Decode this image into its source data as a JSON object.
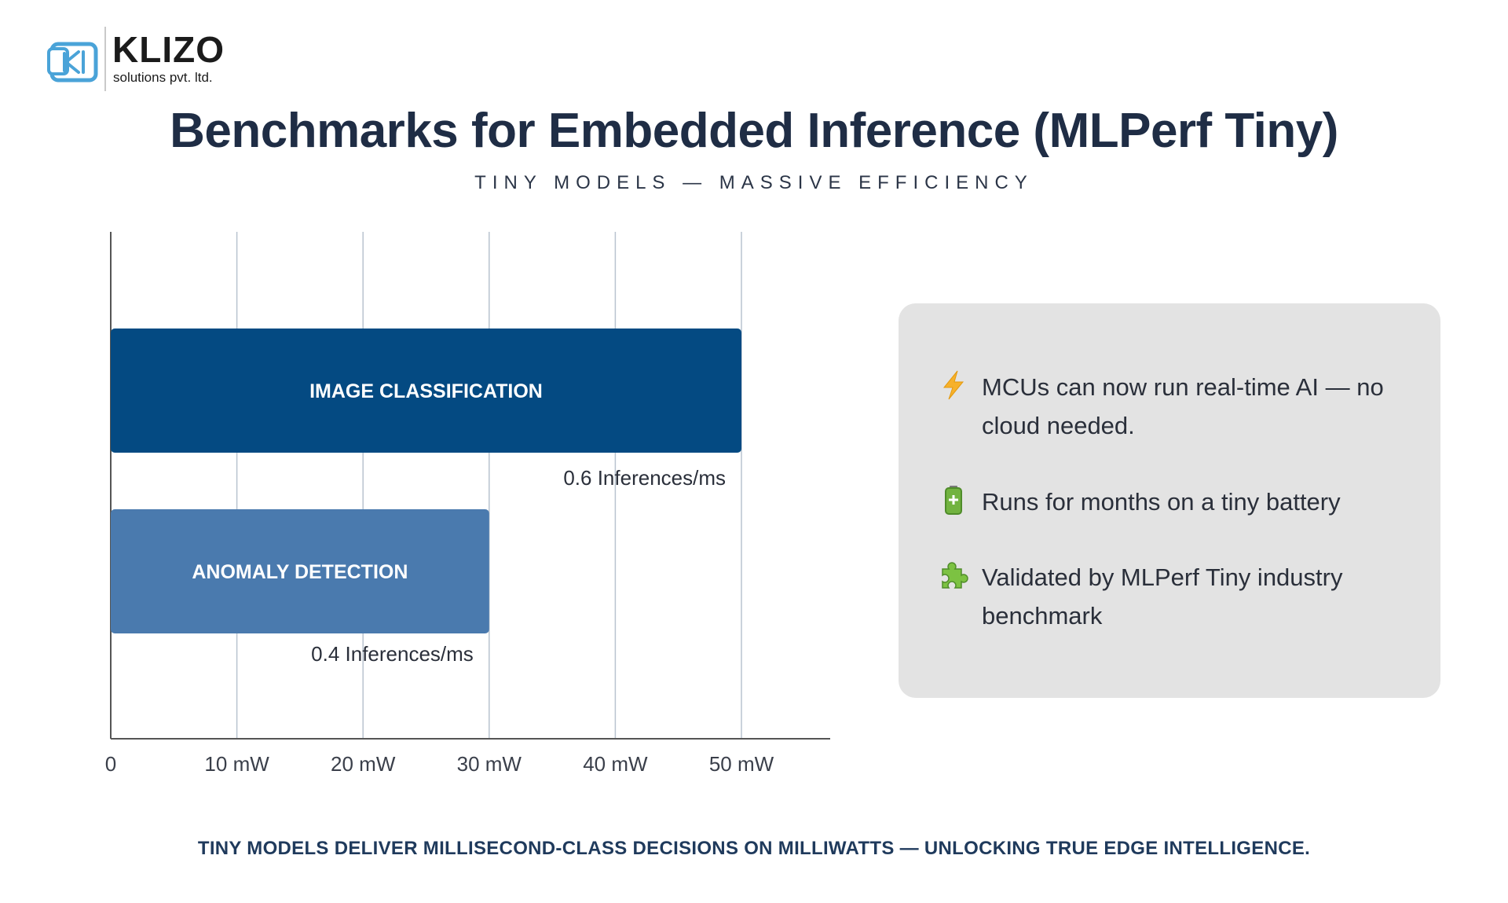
{
  "logo": {
    "name": "KLIZO",
    "sub": "solutions pvt. ltd."
  },
  "title": "Benchmarks for Embedded Inference (MLPerf Tiny)",
  "subtitle": "TINY MODELS — MASSIVE EFFICIENCY",
  "chart_data": {
    "type": "bar",
    "orientation": "horizontal",
    "categories": [
      "IMAGE CLASSIFICATION",
      "ANOMALY DETECTION"
    ],
    "values": [
      50,
      30
    ],
    "data_labels": [
      "0.6 Inferences/ms",
      "0.4 Inferences/ms"
    ],
    "colors": [
      "#044a82",
      "#4a7aae"
    ],
    "xticks": [
      "0",
      "10 mW",
      "20 mW",
      "30 mW",
      "40 mW",
      "50 mW"
    ],
    "xlim": [
      0,
      55
    ],
    "grid": true
  },
  "points": [
    {
      "icon": "lightning-icon",
      "text": "MCUs can now run real-time AI — no cloud needed."
    },
    {
      "icon": "battery-icon",
      "text": "Runs for months on a tiny battery"
    },
    {
      "icon": "puzzle-icon",
      "text": "Validated by MLPerf Tiny industry benchmark"
    }
  ],
  "tagline": "TINY MODELS DELIVER MILLISECOND-CLASS DECISIONS ON MILLIWATTS — UNLOCKING TRUE EDGE INTELLIGENCE."
}
